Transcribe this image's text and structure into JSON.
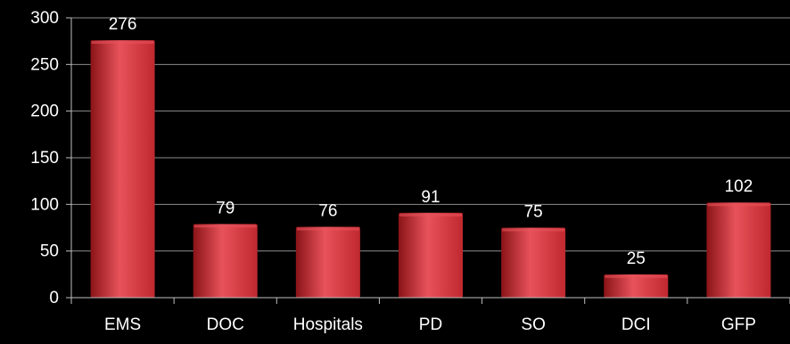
{
  "chart_data": {
    "type": "bar",
    "title": "",
    "xlabel": "",
    "ylabel": "",
    "categories": [
      "EMS",
      "DOC",
      "Hospitals",
      "PD",
      "SO",
      "DCI",
      "GFP"
    ],
    "values": [
      276,
      79,
      76,
      91,
      75,
      25,
      102
    ],
    "data_labels": [
      "276",
      "79",
      "76",
      "91",
      "75",
      "25",
      "102"
    ],
    "ylim": [
      0,
      300
    ],
    "yticks": [
      0,
      50,
      100,
      150,
      200,
      250,
      300
    ],
    "grid": true,
    "legend": "none",
    "colors": {
      "background": "#000000",
      "bar_light": "#e8525a",
      "bar_mid": "#c0282f",
      "bar_dark": "#8a1418",
      "gridline": "#8c8c8c",
      "axis": "#bfbfbf",
      "text": "#ffffff"
    }
  }
}
